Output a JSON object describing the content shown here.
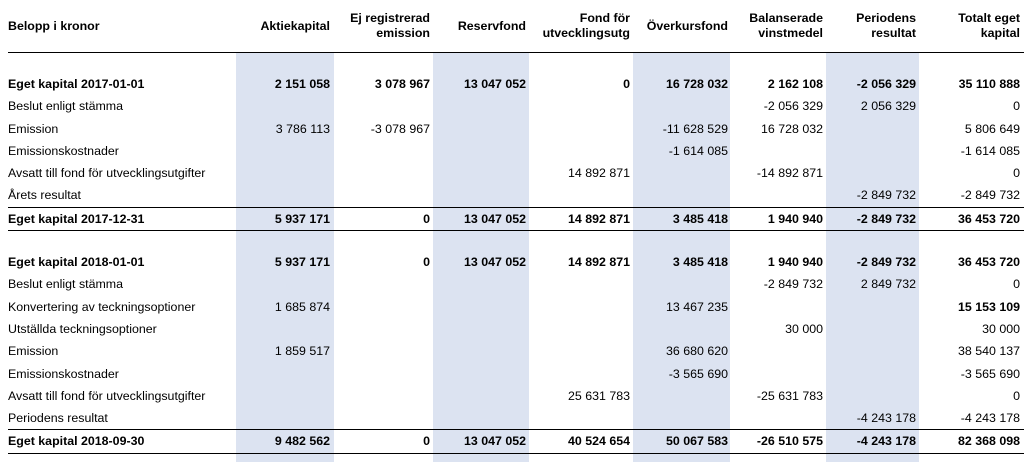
{
  "header": [
    "Belopp i kronor",
    "Aktiekapital",
    "Ej registrerad emission",
    "Reservfond",
    "Fond för utvecklingsutg",
    "Överkursfond",
    "Balanserade vinstmedel",
    "Periodens resultat",
    "Totalt eget kapital"
  ],
  "header_lines": [
    [
      "Belopp i kronor"
    ],
    [
      "Aktiekapital"
    ],
    [
      "Ej registrerad",
      "emission"
    ],
    [
      "Reservfond"
    ],
    [
      "Fond för",
      "utvecklingsutg"
    ],
    [
      "Överkursfond"
    ],
    [
      "Balanserade",
      "vinstmedel"
    ],
    [
      "Periodens",
      "resultat"
    ],
    [
      "Totalt eget",
      "kapital"
    ]
  ],
  "rows": [
    {
      "type": "spacer"
    },
    {
      "type": "bold",
      "cells": [
        "Eget kapital 2017-01-01",
        "2 151 058",
        "3 078 967",
        "13 047 052",
        "0",
        "16 728 032",
        "2 162 108",
        "-2 056 329",
        "35 110 888"
      ]
    },
    {
      "type": "normal",
      "cells": [
        "Beslut enligt stämma",
        "",
        "",
        "",
        "",
        "",
        "-2 056 329",
        "2 056 329",
        "0"
      ]
    },
    {
      "type": "normal",
      "cells": [
        "Emission",
        "3 786 113",
        "-3 078 967",
        "",
        "",
        "-11 628 529",
        "16 728 032",
        "",
        "5 806 649"
      ]
    },
    {
      "type": "normal",
      "cells": [
        "Emissionskostnader",
        "",
        "",
        "",
        "",
        "-1 614 085",
        "",
        "",
        "-1 614 085"
      ]
    },
    {
      "type": "normal",
      "cells": [
        "Avsatt till fond för utvecklingsutgifter",
        "",
        "",
        "",
        "14 892 871",
        "",
        "-14 892 871",
        "",
        "0"
      ]
    },
    {
      "type": "normal",
      "cells": [
        "Årets resultat",
        "",
        "",
        "",
        "",
        "",
        "",
        "-2 849 732",
        "-2 849 732"
      ]
    },
    {
      "type": "total",
      "cells": [
        "Eget kapital 2017-12-31",
        "5 937 171",
        "0",
        "13 047 052",
        "14 892 871",
        "3 485 418",
        "1 940 940",
        "-2 849 732",
        "36 453 720"
      ]
    },
    {
      "type": "spacer"
    },
    {
      "type": "bold",
      "cells": [
        "Eget kapital 2018-01-01",
        "5 937 171",
        "0",
        "13 047 052",
        "14 892 871",
        "3 485 418",
        "1 940 940",
        "-2 849 732",
        "36 453 720"
      ]
    },
    {
      "type": "normal",
      "cells": [
        "Beslut enligt stämma",
        "",
        "",
        "",
        "",
        "",
        "-2 849 732",
        "2 849 732",
        "0"
      ]
    },
    {
      "type": "normal",
      "bold_last": true,
      "cells": [
        "Konvertering av teckningsoptioner",
        "1 685 874",
        "",
        "",
        "",
        "13 467 235",
        "",
        "",
        "15 153 109"
      ]
    },
    {
      "type": "normal",
      "cells": [
        "Utställda teckningsoptioner",
        "",
        "",
        "",
        "",
        "",
        "30 000",
        "",
        "30 000"
      ]
    },
    {
      "type": "normal",
      "cells": [
        "Emission",
        "1 859 517",
        "",
        "",
        "",
        "36 680 620",
        "",
        "",
        "38 540 137"
      ]
    },
    {
      "type": "normal",
      "cells": [
        "Emissionskostnader",
        "",
        "",
        "",
        "",
        "-3 565 690",
        "",
        "",
        "-3 565 690"
      ]
    },
    {
      "type": "normal",
      "cells": [
        "Avsatt till fond för utvecklingsutgifter",
        "",
        "",
        "",
        "25 631 783",
        "",
        "-25 631 783",
        "",
        "0"
      ]
    },
    {
      "type": "normal",
      "cells": [
        "Periodens resultat",
        "",
        "",
        "",
        "",
        "",
        "",
        "-4 243 178",
        "-4 243 178"
      ]
    },
    {
      "type": "total",
      "cells": [
        "Eget kapital 2018-09-30",
        "9 482 562",
        "0",
        "13 047 052",
        "40 524 654",
        "50 067 583",
        "-26 510 575",
        "-4 243 178",
        "82 368 098"
      ]
    }
  ]
}
